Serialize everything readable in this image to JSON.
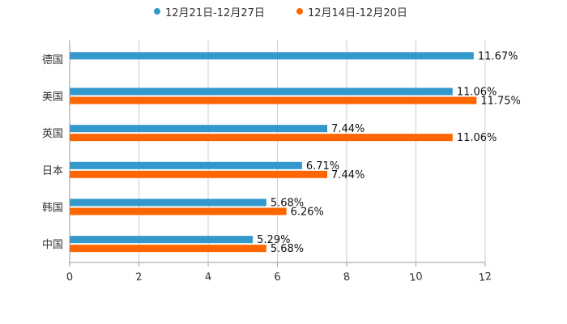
{
  "chart_data": {
    "type": "bar",
    "orientation": "horizontal",
    "title": "",
    "xlabel": "",
    "ylabel": "",
    "xlim": [
      0,
      12
    ],
    "xticks": [
      "0",
      "2",
      "4",
      "6",
      "8",
      "10",
      "12"
    ],
    "grid": true,
    "legend_position": "top-center",
    "categories": [
      "德国",
      "美国",
      "英国",
      "日本",
      "韩国",
      "中国"
    ],
    "series": [
      {
        "name": "12月21日-12月27日",
        "color": "#3399CC",
        "values": [
          11.67,
          11.06,
          7.44,
          6.71,
          5.68,
          5.29
        ],
        "labels": [
          "11.67%",
          "11.06%",
          "7.44%",
          "6.71%",
          "5.68%",
          "5.29%"
        ]
      },
      {
        "name": "12月14日-12月20日",
        "color": "#FF6600",
        "values": [
          null,
          11.75,
          11.06,
          7.44,
          6.26,
          5.68
        ],
        "labels": [
          "",
          "11.75%",
          "11.06%",
          "7.44%",
          "6.26%",
          "5.68%"
        ]
      }
    ]
  }
}
